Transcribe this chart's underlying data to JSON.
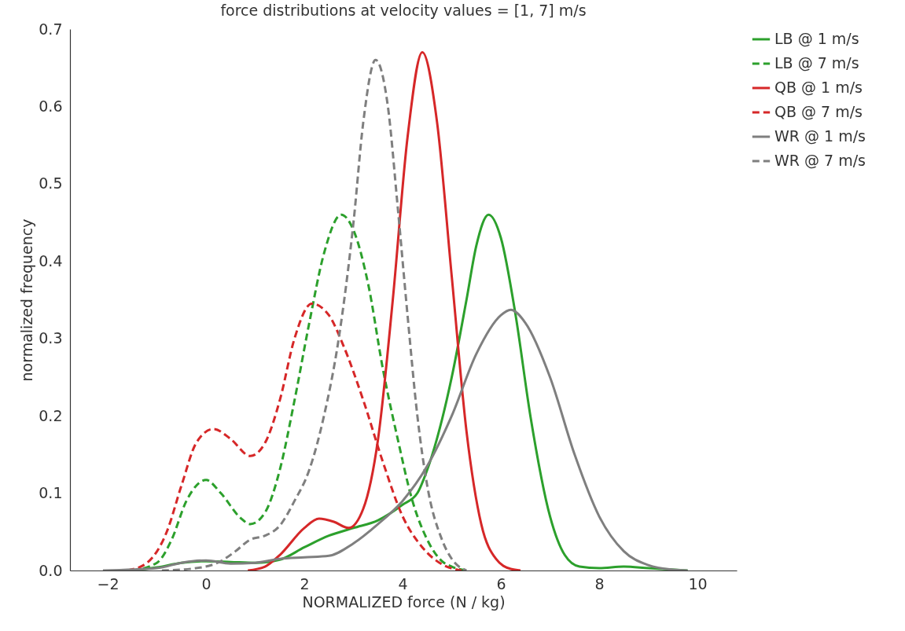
{
  "chart_data": {
    "type": "line",
    "title": "force distributions at velocity values = [1, 7] m/s",
    "xlabel": "NORMALIZED force (N / kg)",
    "ylabel": "normalized frequency",
    "xlim": [
      -2.77,
      10.8
    ],
    "ylim": [
      0,
      0.7
    ],
    "xticks": [
      {
        "value": -2,
        "label": "−2"
      },
      0,
      2,
      4,
      6,
      8,
      10
    ],
    "yticks": [
      {
        "value": 0,
        "label": "0.0"
      },
      0.1,
      0.2,
      0.3,
      0.4,
      0.5,
      0.6,
      0.7
    ],
    "grid": false,
    "legend": "top right",
    "series": [
      {
        "name": "LB @ 1 m/s",
        "color": "#2ca02c",
        "line_style": "solid",
        "x": [
          -1.5,
          -1,
          -0.5,
          0,
          0.5,
          1,
          1.5,
          2,
          2.5,
          3,
          3.5,
          4,
          4.3,
          4.5,
          5,
          5.3,
          5.5,
          5.75,
          6,
          6.3,
          6.6,
          7,
          7.3,
          7.6,
          8,
          8.5,
          9,
          9.8
        ],
        "values": [
          0,
          0.004,
          0.01,
          0.012,
          0.011,
          0.01,
          0.014,
          0.03,
          0.045,
          0.055,
          0.065,
          0.085,
          0.1,
          0.13,
          0.25,
          0.35,
          0.42,
          0.46,
          0.43,
          0.33,
          0.2,
          0.07,
          0.02,
          0.005,
          0.003,
          0.005,
          0.003,
          0
        ]
      },
      {
        "name": "LB @ 7 m/s",
        "color": "#2ca02c",
        "line_style": "dashed",
        "x": [
          -1.5,
          -1,
          -0.7,
          -0.4,
          0,
          0.3,
          0.7,
          0.9,
          1.2,
          1.5,
          1.8,
          2.1,
          2.4,
          2.75,
          3,
          3.3,
          3.6,
          3.9,
          4.2,
          4.5,
          4.8,
          5,
          5.3
        ],
        "values": [
          0,
          0.01,
          0.04,
          0.09,
          0.117,
          0.1,
          0.068,
          0.06,
          0.075,
          0.13,
          0.22,
          0.32,
          0.41,
          0.46,
          0.44,
          0.37,
          0.26,
          0.17,
          0.09,
          0.04,
          0.012,
          0.005,
          0
        ]
      },
      {
        "name": "QB @ 1 m/s",
        "color": "#d62728",
        "line_style": "solid",
        "x": [
          0.85,
          1.2,
          1.5,
          2,
          2.3,
          2.6,
          2.9,
          3.2,
          3.5,
          3.8,
          4.1,
          4.4,
          4.7,
          5,
          5.3,
          5.6,
          5.9,
          6.2,
          6.4
        ],
        "values": [
          0,
          0.005,
          0.02,
          0.055,
          0.067,
          0.063,
          0.055,
          0.08,
          0.17,
          0.35,
          0.56,
          0.67,
          0.58,
          0.38,
          0.18,
          0.06,
          0.015,
          0.002,
          0
        ]
      },
      {
        "name": "QB @ 7 m/s",
        "color": "#d62728",
        "line_style": "dashed",
        "x": [
          -1.6,
          -1.2,
          -0.8,
          -0.5,
          -0.2,
          0.15,
          0.5,
          0.9,
          1.2,
          1.5,
          1.8,
          2.15,
          2.5,
          2.8,
          3.2,
          3.6,
          4,
          4.4,
          4.8,
          5.2
        ],
        "values": [
          0,
          0.01,
          0.05,
          0.11,
          0.165,
          0.183,
          0.17,
          0.148,
          0.165,
          0.22,
          0.3,
          0.345,
          0.33,
          0.29,
          0.22,
          0.14,
          0.07,
          0.03,
          0.008,
          0
        ]
      },
      {
        "name": "WR @ 1 m/s",
        "color": "#7f7f7f",
        "line_style": "solid",
        "x": [
          -2.1,
          -1,
          -0.5,
          0,
          0.5,
          1,
          1.5,
          2,
          2.5,
          3,
          3.5,
          4,
          4.5,
          5,
          5.5,
          6,
          6.2,
          6.5,
          7,
          7.5,
          8,
          8.5,
          9,
          9.5,
          9.8
        ],
        "values": [
          0,
          0.003,
          0.01,
          0.013,
          0.009,
          0.01,
          0.015,
          0.017,
          0.019,
          0.035,
          0.06,
          0.09,
          0.135,
          0.2,
          0.28,
          0.33,
          0.337,
          0.32,
          0.25,
          0.15,
          0.07,
          0.025,
          0.007,
          0.001,
          0
        ]
      },
      {
        "name": "WR @ 7 m/s",
        "color": "#7f7f7f",
        "line_style": "dashed",
        "x": [
          -0.9,
          -0.2,
          0.3,
          0.6,
          0.9,
          1.2,
          1.5,
          1.8,
          2.1,
          2.4,
          2.7,
          3,
          3.2,
          3.45,
          3.7,
          3.9,
          4.1,
          4.3,
          4.5,
          4.8,
          5,
          5.3
        ],
        "values": [
          0,
          0.003,
          0.012,
          0.025,
          0.04,
          0.045,
          0.058,
          0.09,
          0.13,
          0.2,
          0.3,
          0.45,
          0.58,
          0.66,
          0.6,
          0.47,
          0.33,
          0.2,
          0.11,
          0.04,
          0.015,
          0
        ]
      }
    ]
  }
}
